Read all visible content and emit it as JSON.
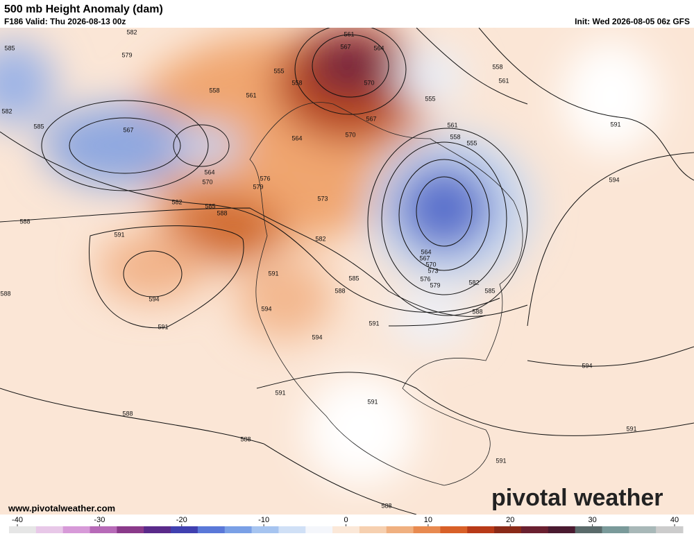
{
  "header": {
    "title": "500 mb Height Anomaly (dam)",
    "valid": "F186 Valid: Thu 2026-08-13 00z",
    "init": "Init: Wed 2026-08-05 06z GFS"
  },
  "contour_labels": [
    582,
    585,
    579,
    555,
    558,
    561,
    567,
    564,
    570,
    558,
    561,
    558,
    561,
    555,
    582,
    585,
    567,
    564,
    561,
    558,
    555,
    570,
    567,
    564,
    570,
    576,
    579,
    591,
    594,
    582,
    585,
    588,
    573,
    588,
    591,
    582,
    564,
    567,
    570,
    573,
    576,
    579,
    582,
    585,
    591,
    585,
    588,
    594,
    588,
    594,
    588,
    591,
    591,
    594,
    594,
    591,
    591,
    588,
    588,
    591,
    591,
    588
  ],
  "footer": {
    "website": "www.pivotalweather.com",
    "logo": "pivotal weather"
  },
  "colorbar": {
    "range": [
      -40,
      40
    ],
    "ticks": [
      -40,
      -30,
      -20,
      -10,
      0,
      10,
      20,
      30,
      40
    ]
  }
}
